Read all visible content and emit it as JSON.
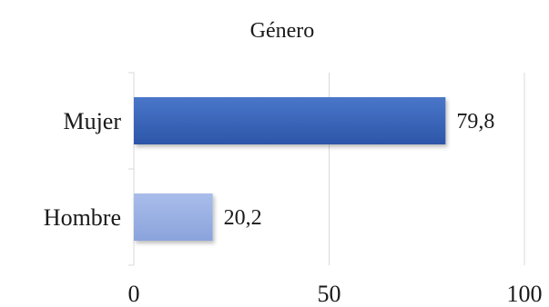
{
  "chart_data": {
    "type": "bar",
    "orientation": "horizontal",
    "title": "Género",
    "categories": [
      "Mujer",
      "Hombre"
    ],
    "values": [
      79.8,
      20.2
    ],
    "value_labels": [
      "79,8",
      "20,2"
    ],
    "xlim": [
      0,
      100
    ],
    "x_ticks": [
      0,
      50,
      100
    ],
    "x_tick_labels": [
      "0",
      "50",
      "100"
    ],
    "grid": true,
    "legend": "none",
    "colors": {
      "Mujer": {
        "top": "#4a76c9",
        "bottom": "#2c56a8"
      },
      "Hombre": {
        "top": "#a9bdea",
        "bottom": "#8aa3dc"
      }
    }
  }
}
